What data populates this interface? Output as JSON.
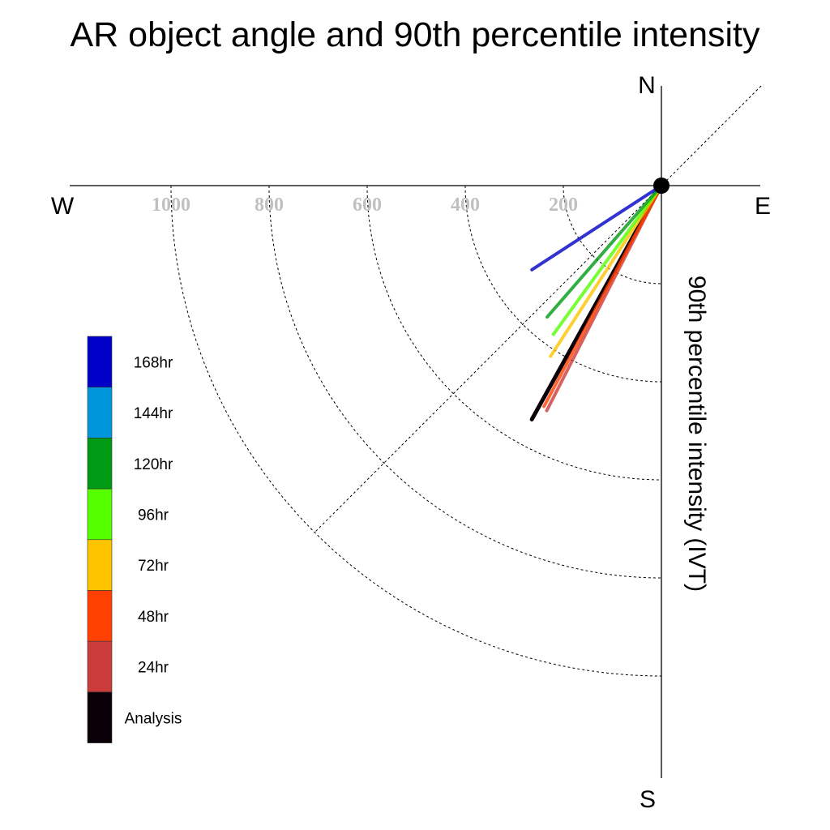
{
  "chart_data": {
    "type": "polar-vector",
    "title": "AR object angle and 90th percentile intensity",
    "ylabel": "90th percentile intensity (IVT)",
    "compass": {
      "n": "N",
      "s": "S",
      "e": "E",
      "w": "W"
    },
    "radial_ticks": [
      "200",
      "400",
      "600",
      "800",
      "1000"
    ],
    "radial_tick_values": [
      200,
      400,
      600,
      800,
      1000
    ],
    "legend_position": "left",
    "series": [
      {
        "name": "168hr",
        "color": "#0000c8",
        "intensity": 315,
        "angle_deg": 237
      },
      {
        "name": "144hr",
        "color": "#0096dc",
        "intensity": null,
        "angle_deg": null
      },
      {
        "name": "120hr",
        "color": "#009a14",
        "intensity": 355,
        "angle_deg": 221
      },
      {
        "name": "96hr",
        "color": "#55ff00",
        "intensity": 375,
        "angle_deg": 216
      },
      {
        "name": "72hr",
        "color": "#ffc400",
        "intensity": 415,
        "angle_deg": 213
      },
      {
        "name": "48hr",
        "color": "#ff4000",
        "intensity": 510,
        "angle_deg": 208
      },
      {
        "name": "24hr",
        "color": "#cc3b3b",
        "intensity": 515,
        "angle_deg": 207
      },
      {
        "name": "Analysis",
        "color": "#0a0008",
        "intensity": 545,
        "angle_deg": 209
      }
    ]
  }
}
